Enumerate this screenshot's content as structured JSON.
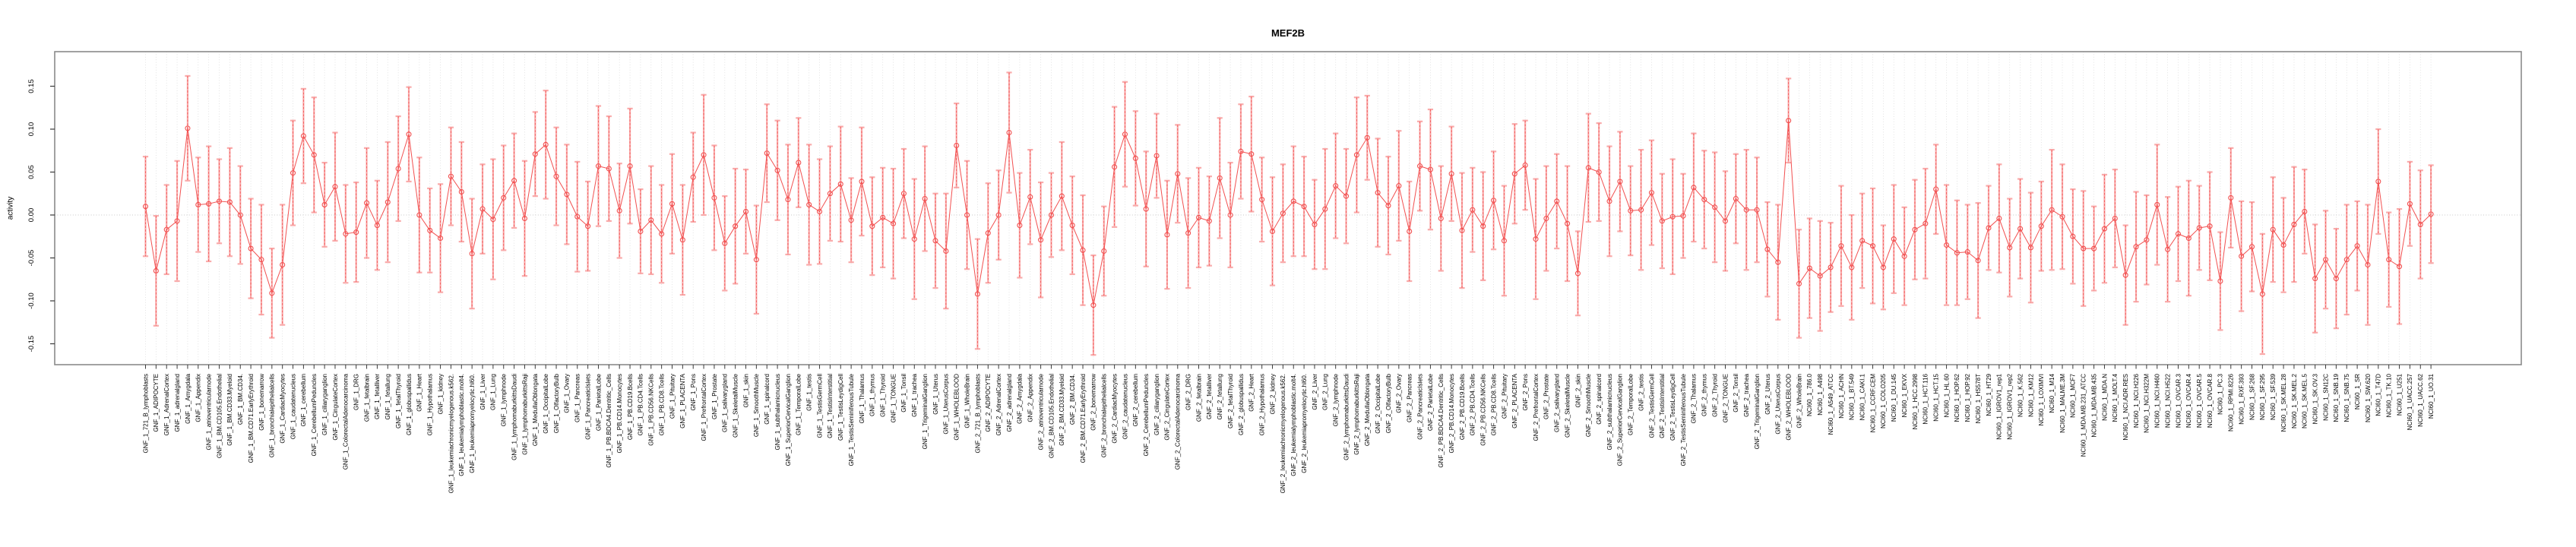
{
  "title": "MEF2B",
  "chart_data": {
    "type": "line",
    "title": "MEF2B",
    "ylabel": "activity",
    "xlabel": "",
    "ylim": [
      -0.175,
      0.19
    ],
    "ytick_labels": [
      "0.15",
      "0.10",
      "0.05",
      "0.00",
      "-0.05",
      "-0.10",
      "-0.15"
    ],
    "ytick_values": [
      0.15,
      0.1,
      0.05,
      0.0,
      -0.05,
      -0.1,
      -0.15
    ],
    "legend": "none",
    "grid": {
      "vertical_dotted_per_sample": true,
      "horizontal_zero_dotted_line": true
    },
    "marker": "open-circle",
    "series_color": "#f25050",
    "error_bar_color": "#f9abab",
    "groups": [
      {
        "prefix": "GNF_1_",
        "suffixes": [
          "721_B_lymphoblasts",
          "ADIPOCYTE",
          "AdrenalCortex",
          "adrenalgland",
          "Amygdala",
          "Appendix",
          "atrioventricularnode",
          "BM.CD105.Endothelial",
          "BM.CD33.Myeloid",
          "BM.CD34.",
          "BM.CD71.EarlyErythroid",
          "bonemarrow",
          "bronchialepithelialcells",
          "CardiacMyocytes",
          "caudatenucleus",
          "cerebellum",
          "CerebellumPeduncles",
          "ciliaryganglion",
          "CingulateCortex",
          "ColorectalAdenocarcinoma",
          "DRG",
          "fetalbrain",
          "fetalliver",
          "fetallung",
          "fetalThyroid",
          "globuspallidus",
          "Heart",
          "Hypothalamus",
          "kidney",
          "leukemiachronicmyelogenous.k562.",
          "leukemialymphoblastic.molt4.",
          "leukemiapromyelocytic.hl60.",
          "Liver",
          "Lung",
          "lymphnode",
          "lymphomaburkittsDaudi",
          "lymphomaburkittsRaji",
          "MedullaOblongata",
          "OccipitalLobe",
          "OlfactoryBulb",
          "Ovary",
          "Pancreas",
          "PancreaticIslets",
          "ParietalLobe",
          "PB.BDCA4.Dentritic_Cells",
          "PB.CD14.Monocytes",
          "PB.CD19.Bcells",
          "PB.CD4.Tcells",
          "PB.CD56.NKCells",
          "PB.CD8.Tcells",
          "Pituitary",
          "PLACENTA",
          "Pons",
          "PrefrontalCortex",
          "Prostate",
          "salivarygland",
          "SkeletalMuscle",
          "skin",
          "SmoothMuscle",
          "spinalcord",
          "subthalamicnucleus",
          "SuperiorCervicalGanglion",
          "TemporalLobe",
          "testis",
          "TestisGermCell",
          "TestisInterstitial",
          "TestisLeydigCell",
          "TestisSeminiferousTubule",
          "Thalamus",
          "thymus",
          "Thyroid",
          "TONGUE",
          "Tonsil",
          "trachea",
          "TrigeminalGanglion",
          "Uterus",
          "UterusCorpus",
          "WHOLEBLOOD",
          "WholeBrain"
        ],
        "values": [
          0.01,
          -0.065,
          -0.017,
          -0.007,
          0.101,
          0.012,
          0.013,
          0.016,
          0.015,
          0.0,
          -0.039,
          -0.052,
          -0.091,
          -0.058,
          0.049,
          0.092,
          0.07,
          0.012,
          0.033,
          -0.022,
          -0.02,
          0.014,
          -0.012,
          0.015,
          0.054,
          0.094,
          0.0,
          -0.018,
          -0.027,
          0.045,
          0.027,
          -0.045,
          0.007,
          -0.005,
          0.02,
          0.04,
          -0.004,
          0.071,
          0.082,
          0.045,
          0.024,
          -0.002,
          -0.013,
          0.057,
          0.054,
          0.005,
          0.057,
          -0.019,
          -0.006,
          -0.022,
          0.013,
          -0.029,
          0.044,
          0.07,
          0.02,
          -0.033,
          -0.013,
          0.004,
          -0.052,
          0.072,
          0.052,
          0.018,
          0.061,
          0.012,
          0.004,
          0.025,
          0.036,
          -0.006,
          0.039,
          -0.013,
          -0.003,
          -0.01,
          0.025,
          -0.028,
          0.019,
          -0.03,
          -0.042,
          0.081,
          0.0
        ],
        "errors": [
          0.058,
          0.064,
          0.052,
          0.07,
          0.061,
          0.055,
          0.067,
          0.049,
          0.063,
          0.057,
          0.058,
          0.064,
          0.052,
          0.07,
          0.061,
          0.055,
          0.067,
          0.049,
          0.063,
          0.057,
          0.058,
          0.064,
          0.052,
          0.07,
          0.061,
          0.055,
          0.067,
          0.049,
          0.063,
          0.057,
          0.058,
          0.064,
          0.052,
          0.07,
          0.061,
          0.055,
          0.067,
          0.049,
          0.063,
          0.057,
          0.058,
          0.064,
          0.052,
          0.07,
          0.061,
          0.055,
          0.067,
          0.049,
          0.063,
          0.057,
          0.058,
          0.064,
          0.052,
          0.07,
          0.061,
          0.055,
          0.067,
          0.049,
          0.063,
          0.057,
          0.058,
          0.064,
          0.052,
          0.07,
          0.061,
          0.055,
          0.067,
          0.049,
          0.063,
          0.057,
          0.058,
          0.064,
          0.052,
          0.07,
          0.061,
          0.055,
          0.067,
          0.049,
          0.063
        ]
      },
      {
        "prefix": "GNF_2_",
        "suffixes": [
          "721_B_lymphoblasts",
          "ADIPOCYTE",
          "AdrenalCortex",
          "adrenalgland",
          "Amygdala",
          "Appendix",
          "atrioventricularnode",
          "BM.CD105.Endothelial",
          "BM.CD33.Myeloid",
          "BM.CD34.",
          "BM.CD71.EarlyErythroid",
          "bonemarrow",
          "bronchialepithelialcells",
          "CardiacMyocytes",
          "caudatenucleus",
          "cerebellum",
          "CerebellumPeduncles",
          "ciliaryganglion",
          "CingulateCortex",
          "ColorectalAdenocarcinoma",
          "DRG",
          "fetalbrain",
          "fetalliver",
          "fetallung",
          "fetalThyroid",
          "globuspallidus",
          "Heart",
          "Hypothalamus",
          "kidney",
          "leukemiachronicmyelogenous.k562.",
          "leukemialymphoblastic.molt4.",
          "leukemiapromyelocytic.hl60.",
          "Liver",
          "Lung",
          "lymphnode",
          "lymphomaburkittsDaudi",
          "lymphomaburkittsRaji",
          "MedullaOblongata",
          "OccipitalLobe",
          "OlfactoryBulb",
          "Ovary",
          "Pancreas",
          "PancreaticIslets",
          "ParietalLobe",
          "PB.BDCA4.Dentritic_Cells",
          "PB.CD14.Monocytes",
          "PB.CD19.Bcells",
          "PB.CD4.Tcells",
          "PB.CD56.NKCells",
          "PB.CD8.Tcells",
          "Pituitary",
          "PLACENTA",
          "Pons",
          "PrefrontalCortex",
          "Prostate",
          "salivarygland",
          "SkeletalMuscle",
          "skin",
          "SmoothMuscle",
          "spinalcord",
          "subthalamicnucleus",
          "SuperiorCervicalGanglion",
          "TemporalLobe",
          "testis",
          "TestisGermCell",
          "TestisInterstitial",
          "TestisLeydigCell",
          "TestisSeminiferousTubule",
          "Thalamus",
          "thymus",
          "Thyroid",
          "TONGUE",
          "Tonsil",
          "trachea",
          "TrigeminalGanglion",
          "Uterus",
          "UterusCorpus",
          "WHOLEBLOOD",
          "WholeBrain"
        ],
        "values": [
          -0.092,
          -0.021,
          0.0,
          0.096,
          -0.012,
          0.021,
          -0.029,
          0.0,
          0.022,
          -0.012,
          -0.041,
          -0.105,
          -0.042,
          0.056,
          0.094,
          0.066,
          0.007,
          0.069,
          -0.023,
          0.048,
          -0.021,
          -0.003,
          -0.007,
          0.043,
          0.0,
          0.074,
          0.071,
          0.018,
          -0.019,
          0.002,
          0.016,
          0.01,
          -0.011,
          0.007,
          0.034,
          0.022,
          0.07,
          0.09,
          0.026,
          0.011,
          0.034,
          -0.019,
          0.057,
          0.053,
          -0.004,
          0.048,
          -0.018,
          0.006,
          -0.013,
          0.017,
          -0.03,
          0.048,
          0.058,
          -0.028,
          -0.004,
          0.016,
          -0.01,
          -0.068,
          0.055,
          0.05,
          0.016,
          0.039,
          0.005,
          0.006,
          0.026,
          -0.007,
          -0.002,
          -0.001,
          0.032,
          0.018,
          0.009,
          -0.007,
          0.019,
          0.006,
          0.006,
          -0.04,
          -0.055,
          0.11,
          -0.08
        ],
        "errors": [
          0.064,
          0.058,
          0.052,
          0.07,
          0.061,
          0.055,
          0.067,
          0.049,
          0.063,
          0.057,
          0.064,
          0.058,
          0.052,
          0.07,
          0.061,
          0.055,
          0.067,
          0.049,
          0.063,
          0.057,
          0.064,
          0.058,
          0.052,
          0.07,
          0.061,
          0.055,
          0.067,
          0.049,
          0.063,
          0.057,
          0.064,
          0.058,
          0.052,
          0.07,
          0.061,
          0.055,
          0.067,
          0.049,
          0.063,
          0.057,
          0.064,
          0.058,
          0.052,
          0.07,
          0.061,
          0.055,
          0.067,
          0.049,
          0.063,
          0.057,
          0.064,
          0.058,
          0.052,
          0.07,
          0.061,
          0.055,
          0.067,
          0.049,
          0.063,
          0.057,
          0.064,
          0.058,
          0.052,
          0.07,
          0.061,
          0.055,
          0.067,
          0.049,
          0.063,
          0.057,
          0.064,
          0.058,
          0.052,
          0.07,
          0.061,
          0.055,
          0.067,
          0.049,
          0.063
        ]
      },
      {
        "prefix": "NCI60_1_",
        "suffixes": [
          "786.0",
          "A498",
          "A549_ATCC",
          "ACHN",
          "BT.549",
          "CAKI.1",
          "CCRF.CEM",
          "COLO205",
          "DU.145",
          "EKVX",
          "HCC.2998",
          "HCT.116",
          "HCT.15",
          "HL.60",
          "HOP.62",
          "HOP.92",
          "HS578T",
          "HT29",
          "IGROV1_rep1",
          "IGROV1_rep2",
          "K.562",
          "KM12",
          "LOXIMVI",
          "M14",
          "MALME.3M",
          "MCF7",
          "MDA.MB.231_ATCC",
          "MDA.MB.435",
          "MDA.N",
          "MOLT.4",
          "NCI.ADR.RES",
          "NCI.H226",
          "NCI.H322M",
          "NCI.H460",
          "NCI.H522",
          "OVCAR.3",
          "OVCAR.4",
          "OVCAR.5",
          "OVCAR.8",
          "PC.3",
          "RPMI.8226",
          "RXF.393",
          "SF.268",
          "SF.295",
          "SF.539",
          "SK.MEL.28",
          "SK.MEL.2",
          "SK.MEL.5",
          "SK.OV.3",
          "SN12C",
          "SNB.19",
          "SNB.75",
          "SR",
          "SW.620",
          "T47D",
          "TK.10",
          "U251",
          "UACC.257",
          "UACC.62",
          "UO.31"
        ],
        "values": [
          -0.062,
          -0.071,
          -0.061,
          -0.036,
          -0.061,
          -0.03,
          -0.036,
          -0.061,
          -0.028,
          -0.048,
          -0.017,
          -0.01,
          0.03,
          -0.035,
          -0.044,
          -0.043,
          -0.053,
          -0.015,
          -0.004,
          -0.038,
          -0.016,
          -0.038,
          -0.013,
          0.006,
          -0.002,
          -0.025,
          -0.039,
          -0.039,
          -0.016,
          -0.004,
          -0.07,
          -0.037,
          -0.029,
          0.012,
          -0.04,
          -0.022,
          -0.027,
          -0.015,
          -0.013,
          -0.077,
          0.02,
          -0.048,
          -0.037,
          -0.092,
          -0.017,
          -0.035,
          -0.011,
          0.004,
          -0.074,
          -0.052,
          -0.074,
          -0.052,
          -0.036,
          -0.058,
          0.039,
          -0.052,
          -0.06,
          0.013,
          -0.011,
          0.001
        ],
        "errors": [
          0.058,
          0.064,
          0.052,
          0.07,
          0.061,
          0.055,
          0.067,
          0.049,
          0.063,
          0.057,
          0.058,
          0.064,
          0.052,
          0.07,
          0.061,
          0.055,
          0.067,
          0.049,
          0.063,
          0.057,
          0.058,
          0.064,
          0.052,
          0.07,
          0.061,
          0.055,
          0.067,
          0.049,
          0.063,
          0.057,
          0.058,
          0.064,
          0.052,
          0.07,
          0.061,
          0.055,
          0.067,
          0.049,
          0.063,
          0.057,
          0.058,
          0.064,
          0.052,
          0.07,
          0.061,
          0.055,
          0.067,
          0.049,
          0.063,
          0.057,
          0.058,
          0.064,
          0.052,
          0.07,
          0.061,
          0.055,
          0.067,
          0.049,
          0.063,
          0.057
        ]
      }
    ],
    "colors": {
      "point": "#f25050",
      "error_bar": "#f9abab",
      "grid": "#dcdcdc",
      "zero_line": "#c8c8c8",
      "box": "#8a8a8a",
      "tick": "#3a3a3a",
      "text": "#000000"
    }
  }
}
